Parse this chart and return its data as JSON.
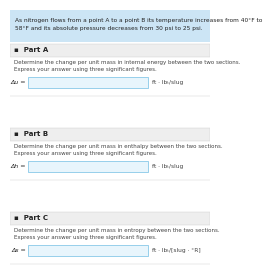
{
  "bg_color": "#ffffff",
  "header_bg": "#cce5f5",
  "part_header_bg": "#eeeeee",
  "input_box_fill": "#e8f5fc",
  "input_box_edge": "#88c8e8",
  "text_dark": "#222222",
  "text_gray": "#444444",
  "header_text_line1": "As nitrogen flows from a point A to a point B its temperature increases from 40°F to",
  "header_text_line2": "58°F and its absolute pressure decreases from 30 psi to 25 psi.",
  "parts": [
    {
      "label": "Part A",
      "desc1": "Determine the change per unit mass in internal energy between the two sections.",
      "desc2": "Express your answer using three significant figures.",
      "var": "Δu =",
      "unit": "ft · lbₜ/slug"
    },
    {
      "label": "Part B",
      "desc1": "Determine the change per unit mass in enthalpy between the two sections.",
      "desc2": "Express your answer using three significant figures.",
      "var": "Δh =",
      "unit": "ft · lbₜ/slug"
    },
    {
      "label": "Part C",
      "desc1": "Determine the change per unit mass in entropy between the two sections.",
      "desc2": "Express your answer using three significant figures.",
      "var": "Δs =",
      "unit": "ft · lbₜ/[slug · °R]"
    }
  ]
}
